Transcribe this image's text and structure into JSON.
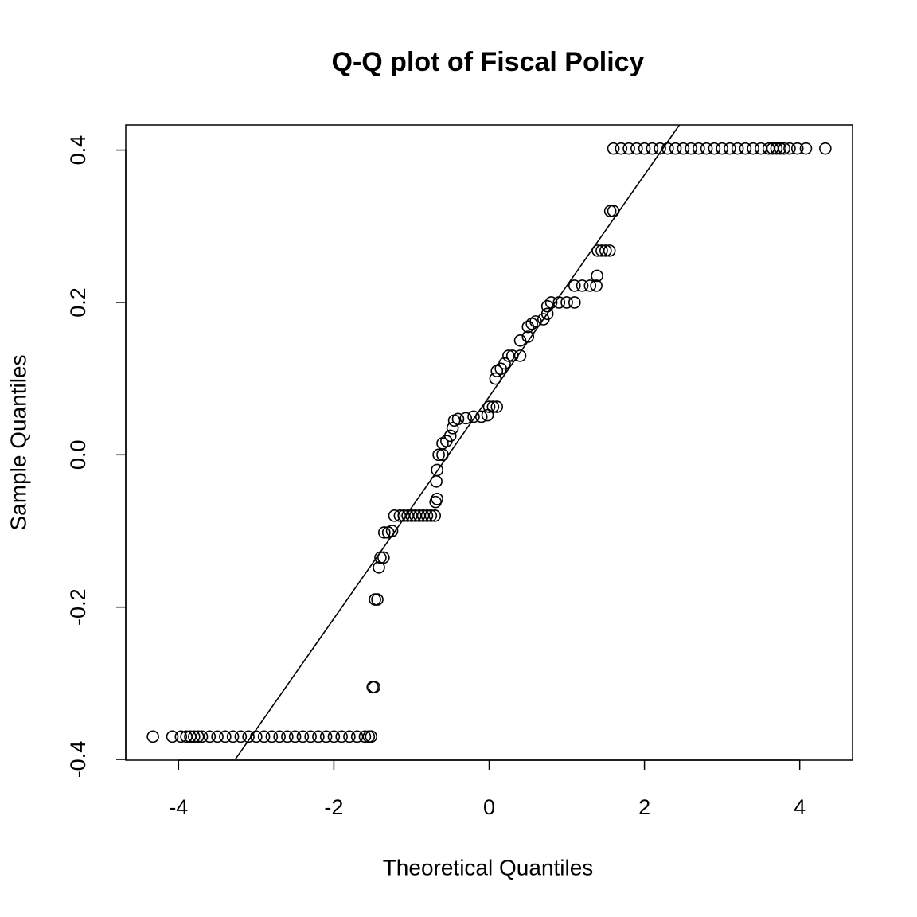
{
  "chart_data": {
    "type": "scatter",
    "title": "Q-Q plot of Fiscal Policy",
    "x_label": "Theoretical Quantiles",
    "y_label": "Sample Quantiles",
    "xlim": [
      -4.68,
      4.68
    ],
    "ylim": [
      -0.401,
      0.433
    ],
    "xticks": [
      -4,
      -2,
      0,
      2,
      4
    ],
    "yticks": [
      -0.4,
      -0.2,
      {
        "value": 0,
        "label": "0.0"
      },
      0.2,
      0.4
    ],
    "color": "#000000",
    "x": [
      -4.33,
      -4.08,
      -3.97,
      -3.9,
      -3.85,
      -3.8,
      -3.75,
      -3.7,
      -3.6,
      -3.5,
      -3.4,
      -3.3,
      -3.2,
      -3.1,
      -3.0,
      -2.9,
      -2.8,
      -2.7,
      -2.6,
      -2.5,
      -2.4,
      -2.3,
      -2.2,
      -2.1,
      -2.0,
      -1.9,
      -1.8,
      -1.7,
      -1.6,
      -1.55,
      -1.52,
      -1.5,
      -1.48,
      -1.47,
      -1.44,
      -1.42,
      -1.4,
      -1.36,
      -1.35,
      -1.3,
      -1.25,
      -1.22,
      -1.15,
      -1.1,
      -1.05,
      -1.0,
      -0.95,
      -0.9,
      -0.85,
      -0.8,
      -0.75,
      -0.7,
      -0.69,
      -0.67,
      -0.68,
      -0.67,
      -0.65,
      -0.6,
      -0.6,
      -0.55,
      -0.5,
      -0.47,
      -0.45,
      -0.4,
      -0.3,
      -0.2,
      -0.1,
      -0.02,
      0,
      0.05,
      0.1,
      0.08,
      0.1,
      0.15,
      0.2,
      0.25,
      0.3,
      0.4,
      0.4,
      0.5,
      0.5,
      0.55,
      0.6,
      0.7,
      0.75,
      0.75,
      0.8,
      0.9,
      1.0,
      1.1,
      1.1,
      1.2,
      1.3,
      1.38,
      1.39,
      1.4,
      1.45,
      1.5,
      1.55,
      1.56,
      1.6,
      1.6,
      1.7,
      1.8,
      1.9,
      2.0,
      2.1,
      2.2,
      2.3,
      2.4,
      2.5,
      2.6,
      2.7,
      2.8,
      2.9,
      3.0,
      3.1,
      3.2,
      3.3,
      3.4,
      3.5,
      3.6,
      3.65,
      3.7,
      3.75,
      3.8,
      3.87,
      3.97,
      4.08,
      4.33
    ],
    "values": [
      -0.37,
      -0.37,
      -0.37,
      -0.37,
      -0.37,
      -0.37,
      -0.37,
      -0.37,
      -0.37,
      -0.37,
      -0.37,
      -0.37,
      -0.37,
      -0.37,
      -0.37,
      -0.37,
      -0.37,
      -0.37,
      -0.37,
      -0.37,
      -0.37,
      -0.37,
      -0.37,
      -0.37,
      -0.37,
      -0.37,
      -0.37,
      -0.37,
      -0.37,
      -0.37,
      -0.37,
      -0.305,
      -0.305,
      -0.19,
      -0.19,
      -0.148,
      -0.135,
      -0.135,
      -0.102,
      -0.102,
      -0.1,
      -0.08,
      -0.08,
      -0.08,
      -0.08,
      -0.08,
      -0.08,
      -0.08,
      -0.08,
      -0.08,
      -0.08,
      -0.08,
      -0.062,
      -0.058,
      -0.035,
      -0.02,
      0.0,
      0.0,
      0.015,
      0.018,
      0.025,
      0.035,
      0.045,
      0.047,
      0.048,
      0.05,
      0.05,
      0.052,
      0.063,
      0.063,
      0.063,
      0.1,
      0.11,
      0.113,
      0.12,
      0.13,
      0.13,
      0.13,
      0.15,
      0.155,
      0.168,
      0.172,
      0.175,
      0.178,
      0.185,
      0.195,
      0.2,
      0.2,
      0.2,
      0.2,
      0.222,
      0.222,
      0.222,
      0.222,
      0.235,
      0.268,
      0.268,
      0.268,
      0.268,
      0.32,
      0.32,
      0.402,
      0.402,
      0.402,
      0.402,
      0.402,
      0.402,
      0.402,
      0.402,
      0.402,
      0.402,
      0.402,
      0.402,
      0.402,
      0.402,
      0.402,
      0.402,
      0.402,
      0.402,
      0.402,
      0.402,
      0.402,
      0.402,
      0.402,
      0.402,
      0.402,
      0.402,
      0.402,
      0.402,
      0.402
    ],
    "line": {
      "x": [
        -3.27,
        2.45
      ],
      "values": [
        -0.4,
        0.433
      ]
    }
  }
}
